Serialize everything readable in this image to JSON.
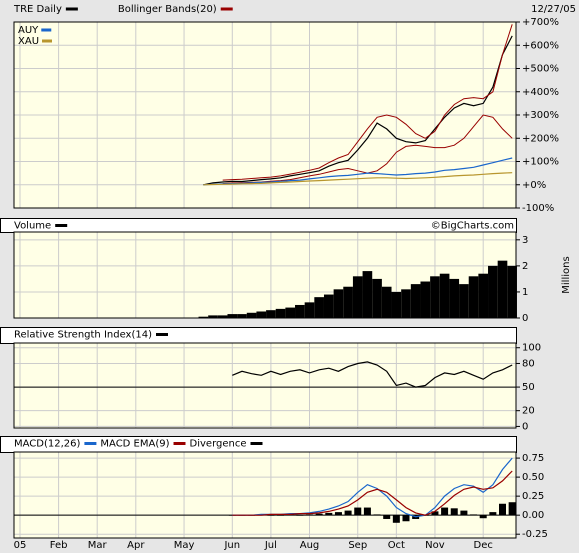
{
  "chart_data": [
    {
      "type": "line",
      "date": "12/27/05",
      "ylim": [
        -100,
        700
      ],
      "yticks": [
        {
          "value": 700,
          "label": "+700%"
        },
        {
          "value": 600,
          "label": "+600%"
        },
        {
          "value": 500,
          "label": "+500%"
        },
        {
          "value": 400,
          "label": "+400%"
        },
        {
          "value": 300,
          "label": "+300%"
        },
        {
          "value": 200,
          "label": "+200%"
        },
        {
          "value": 100,
          "label": "+100%"
        },
        {
          "value": 0,
          "label": "+0%"
        },
        {
          "value": -100,
          "label": "-100%"
        }
      ],
      "grid": true,
      "inset_legend_corner": "top-left",
      "series": [
        {
          "name": "TRE Daily",
          "color": "#000000",
          "legend": "header",
          "values": [
            null,
            null,
            null,
            null,
            null,
            null,
            null,
            null,
            null,
            null,
            null,
            null,
            null,
            null,
            null,
            null,
            null,
            null,
            null,
            0,
            8,
            12,
            15,
            14,
            18,
            22,
            25,
            30,
            38,
            45,
            52,
            60,
            80,
            95,
            105,
            150,
            200,
            265,
            240,
            200,
            185,
            180,
            190,
            240,
            290,
            330,
            350,
            340,
            350,
            420,
            560,
            640
          ]
        },
        {
          "name": "Bollinger Bands(20)",
          "color": "#990000",
          "legend": "header",
          "upper": [
            null,
            null,
            null,
            null,
            null,
            null,
            null,
            null,
            null,
            null,
            null,
            null,
            null,
            null,
            null,
            null,
            null,
            null,
            null,
            null,
            null,
            20,
            22,
            24,
            27,
            30,
            33,
            38,
            46,
            54,
            62,
            72,
            95,
            115,
            130,
            185,
            240,
            290,
            300,
            290,
            260,
            220,
            200,
            230,
            300,
            345,
            370,
            375,
            370,
            400,
            560,
            690
          ],
          "lower": [
            null,
            null,
            null,
            null,
            null,
            null,
            null,
            null,
            null,
            null,
            null,
            null,
            null,
            null,
            null,
            null,
            null,
            null,
            null,
            null,
            null,
            5,
            8,
            9,
            10,
            12,
            15,
            18,
            22,
            30,
            38,
            45,
            55,
            65,
            70,
            60,
            50,
            60,
            90,
            140,
            165,
            170,
            165,
            160,
            160,
            170,
            200,
            250,
            300,
            290,
            240,
            200
          ]
        },
        {
          "name": "AUY",
          "color": "#1a66cc",
          "legend": "inset",
          "values": [
            null,
            null,
            null,
            null,
            null,
            null,
            null,
            null,
            null,
            null,
            null,
            null,
            null,
            null,
            null,
            null,
            null,
            null,
            null,
            0,
            2,
            4,
            5,
            6,
            8,
            10,
            12,
            15,
            18,
            20,
            25,
            30,
            35,
            38,
            40,
            45,
            50,
            48,
            45,
            42,
            44,
            48,
            50,
            55,
            62,
            65,
            70,
            75,
            85,
            95,
            105,
            115
          ]
        },
        {
          "name": "XAU",
          "color": "#b8962e",
          "legend": "inset",
          "values": [
            null,
            null,
            null,
            null,
            null,
            null,
            null,
            null,
            null,
            null,
            null,
            null,
            null,
            null,
            null,
            null,
            null,
            null,
            null,
            0,
            1,
            2,
            3,
            4,
            5,
            6,
            8,
            10,
            12,
            14,
            16,
            18,
            20,
            22,
            24,
            26,
            28,
            30,
            30,
            28,
            27,
            28,
            30,
            32,
            35,
            38,
            40,
            42,
            45,
            48,
            50,
            52
          ]
        }
      ]
    },
    {
      "type": "bar",
      "source": "©BigCharts.com",
      "y_label": "Millions",
      "ylim": [
        0,
        3.3
      ],
      "yticks": [
        0,
        1,
        2,
        3
      ],
      "grid": true,
      "series": [
        {
          "name": "Volume",
          "color": "#000000",
          "legend": "header",
          "values": [
            null,
            null,
            null,
            null,
            null,
            null,
            null,
            null,
            null,
            null,
            null,
            null,
            null,
            null,
            null,
            null,
            null,
            null,
            null,
            0.05,
            0.1,
            0.1,
            0.15,
            0.15,
            0.2,
            0.25,
            0.3,
            0.35,
            0.4,
            0.5,
            0.6,
            0.8,
            0.9,
            1.1,
            1.2,
            1.6,
            1.8,
            1.5,
            1.2,
            1.0,
            1.1,
            1.3,
            1.4,
            1.6,
            1.7,
            1.5,
            1.3,
            1.6,
            1.7,
            2.0,
            2.2,
            2.0
          ]
        }
      ]
    },
    {
      "type": "line",
      "ylim": [
        -2,
        106
      ],
      "yticks": [
        0,
        20,
        50,
        80,
        100
      ],
      "grid": true,
      "reference_line": 50,
      "series": [
        {
          "name": "Relative Strength Index(14)",
          "color": "#000000",
          "legend": "header",
          "values": [
            null,
            null,
            null,
            null,
            null,
            null,
            null,
            null,
            null,
            null,
            null,
            null,
            null,
            null,
            null,
            null,
            null,
            null,
            null,
            null,
            null,
            null,
            65,
            70,
            67,
            65,
            70,
            66,
            70,
            72,
            68,
            72,
            74,
            70,
            76,
            80,
            82,
            78,
            70,
            52,
            55,
            50,
            52,
            62,
            68,
            66,
            70,
            65,
            60,
            68,
            72,
            78
          ]
        }
      ]
    },
    {
      "type": "line",
      "ylim": [
        -0.3,
        0.83
      ],
      "yticks": [
        {
          "value": 0.75,
          "label": "0.75"
        },
        {
          "value": 0.5,
          "label": "0.50"
        },
        {
          "value": 0.25,
          "label": "0.25"
        },
        {
          "value": 0,
          "label": "0.00"
        },
        {
          "value": -0.25,
          "label": "-0.25"
        }
      ],
      "grid": true,
      "reference_line": 0,
      "categories": [
        "05",
        null,
        null,
        null,
        "Feb",
        null,
        null,
        null,
        "Mar",
        null,
        null,
        null,
        "Apr",
        null,
        null,
        null,
        null,
        "May",
        null,
        null,
        null,
        null,
        "Jun",
        null,
        null,
        null,
        "Jul",
        null,
        null,
        null,
        "Aug",
        null,
        null,
        null,
        null,
        "Sep",
        null,
        null,
        null,
        "Oct",
        null,
        null,
        null,
        "Nov",
        null,
        null,
        null,
        null,
        "Dec",
        null,
        null,
        null
      ],
      "series": [
        {
          "name": "MACD(12,26)",
          "color": "#1a66cc",
          "legend": "header",
          "values": [
            null,
            null,
            null,
            null,
            null,
            null,
            null,
            null,
            null,
            null,
            null,
            null,
            null,
            null,
            null,
            null,
            null,
            null,
            null,
            null,
            null,
            null,
            0.0,
            0.0,
            0.0,
            0.01,
            0.01,
            0.01,
            0.02,
            0.02,
            0.03,
            0.05,
            0.08,
            0.12,
            0.18,
            0.3,
            0.4,
            0.35,
            0.25,
            0.1,
            0.02,
            -0.02,
            0.0,
            0.1,
            0.25,
            0.35,
            0.4,
            0.38,
            0.3,
            0.4,
            0.6,
            0.75
          ]
        },
        {
          "name": "MACD EMA(9)",
          "color": "#990000",
          "legend": "header",
          "values": [
            null,
            null,
            null,
            null,
            null,
            null,
            null,
            null,
            null,
            null,
            null,
            null,
            null,
            null,
            null,
            null,
            null,
            null,
            null,
            null,
            null,
            null,
            0.0,
            0.0,
            0.0,
            0.0,
            0.01,
            0.01,
            0.01,
            0.02,
            0.02,
            0.03,
            0.05,
            0.08,
            0.12,
            0.2,
            0.3,
            0.34,
            0.3,
            0.2,
            0.1,
            0.03,
            0.0,
            0.05,
            0.15,
            0.26,
            0.34,
            0.37,
            0.34,
            0.36,
            0.45,
            0.58
          ]
        },
        {
          "name": "Divergence",
          "color": "#000000",
          "legend": "header",
          "type": "bar",
          "values": [
            null,
            null,
            null,
            null,
            null,
            null,
            null,
            null,
            null,
            null,
            null,
            null,
            null,
            null,
            null,
            null,
            null,
            null,
            null,
            null,
            null,
            null,
            0.0,
            0.0,
            0.0,
            0.01,
            0.0,
            0.0,
            0.01,
            0.0,
            0.01,
            0.02,
            0.03,
            0.04,
            0.06,
            0.1,
            0.1,
            0.01,
            -0.05,
            -0.1,
            -0.08,
            -0.05,
            0.0,
            0.05,
            0.1,
            0.09,
            0.06,
            0.01,
            -0.04,
            0.04,
            0.15,
            0.17
          ]
        }
      ]
    }
  ]
}
